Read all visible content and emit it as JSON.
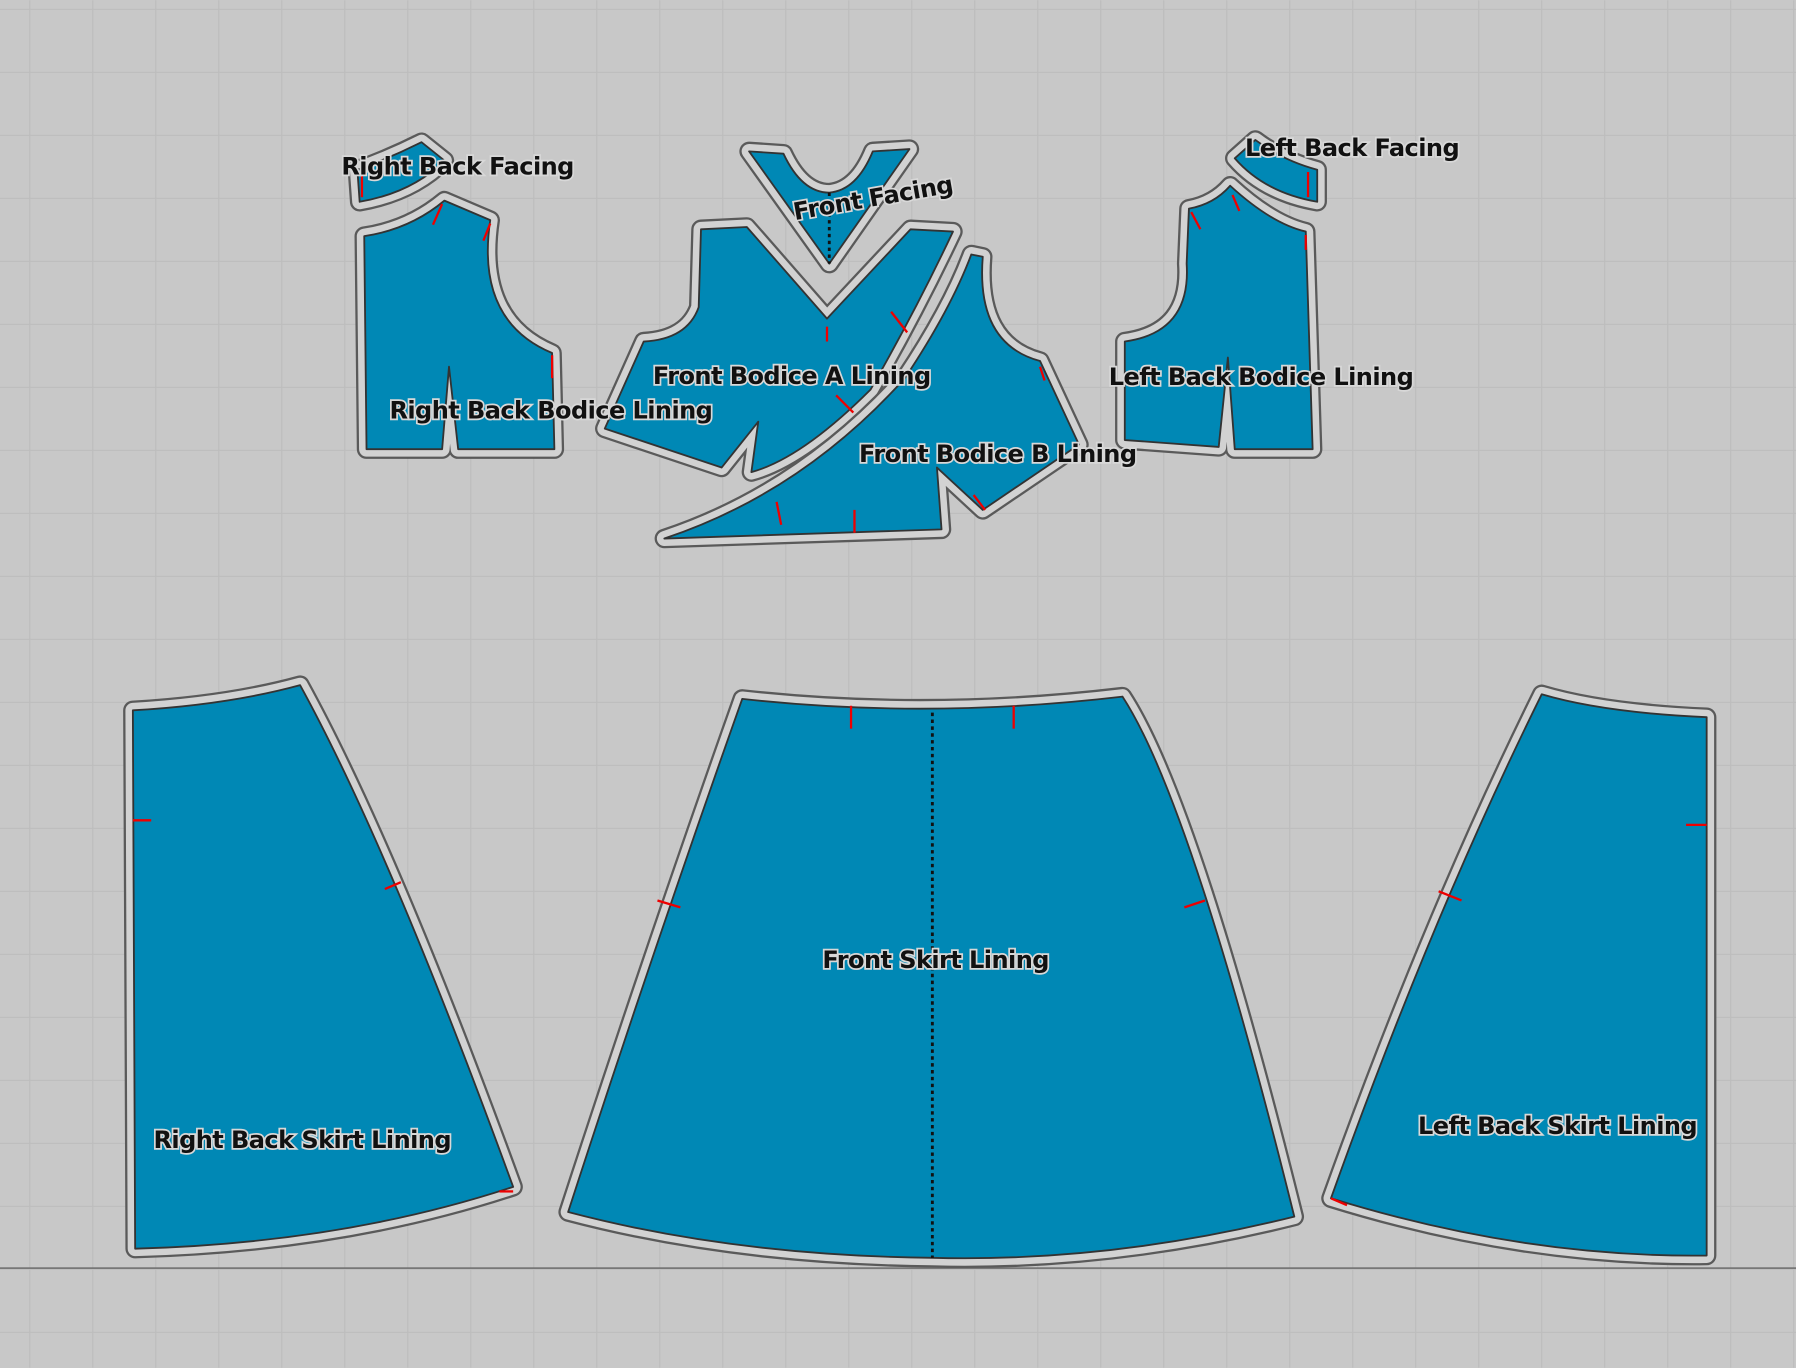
{
  "colors": {
    "background": "#c8c8c8",
    "grid": "#bdbdbd",
    "piece_fill": "#0088b5",
    "seam_allowance": "#d2d2d2",
    "notch": "#e00000"
  },
  "pieces": [
    {
      "id": "right-back-facing",
      "label": "Right Back Facing"
    },
    {
      "id": "front-facing",
      "label": "Front Facing"
    },
    {
      "id": "left-back-facing",
      "label": "Left Back Facing"
    },
    {
      "id": "right-back-bodice-lining",
      "label": "Right Back Bodice Lining"
    },
    {
      "id": "front-bodice-a-lining",
      "label": "Front Bodice A Lining"
    },
    {
      "id": "front-bodice-b-lining",
      "label": "Front Bodice B Lining"
    },
    {
      "id": "left-back-bodice-lining",
      "label": "Left Back Bodice Lining"
    },
    {
      "id": "right-back-skirt-lining",
      "label": "Right Back Skirt Lining"
    },
    {
      "id": "front-skirt-lining",
      "label": "Front Skirt Lining"
    },
    {
      "id": "left-back-skirt-lining",
      "label": "Left Back Skirt Lining"
    }
  ]
}
